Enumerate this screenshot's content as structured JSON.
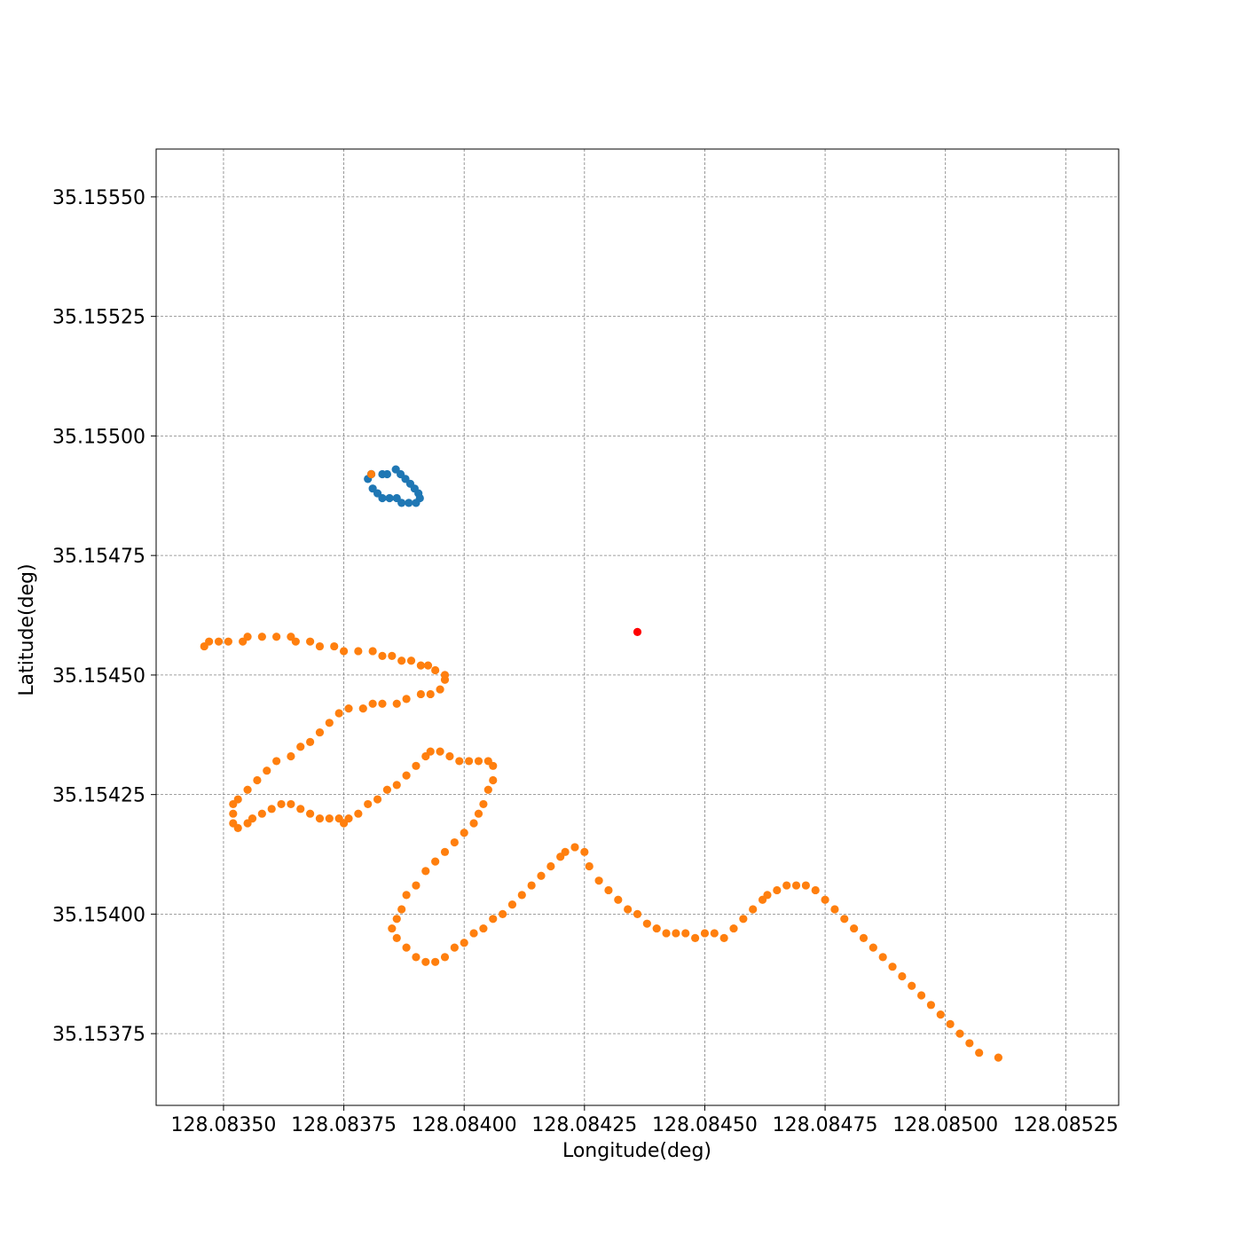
{
  "chart_data": {
    "type": "scatter",
    "title": "",
    "xlabel": "Longitude(deg)",
    "ylabel": "Latitude(deg)",
    "xlim": [
      128.08336,
      128.08536
    ],
    "ylim": [
      35.1536,
      35.1556
    ],
    "xticks": [
      128.0835,
      128.08375,
      128.084,
      128.08425,
      128.0845,
      128.08475,
      128.085,
      128.08525
    ],
    "xtick_labels": [
      "128.08350",
      "128.08375",
      "128.08400",
      "128.08425",
      "128.08450",
      "128.08475",
      "128.08500",
      "128.08525"
    ],
    "yticks": [
      35.15375,
      35.154,
      35.15425,
      35.1545,
      35.15475,
      35.155,
      35.15525,
      35.1555
    ],
    "ytick_labels": [
      "35.15375",
      "35.15400",
      "35.15425",
      "35.15450",
      "35.15475",
      "35.15500",
      "35.15525",
      "35.15550"
    ],
    "grid": true,
    "series": [
      {
        "color": "#1f77b4",
        "points": [
          [
            128.083807,
            35.15492
          ],
          [
            128.08383,
            35.15492
          ],
          [
            128.08384,
            35.15492
          ],
          [
            128.083858,
            35.15493
          ],
          [
            128.083868,
            35.15492
          ],
          [
            128.083878,
            35.15491
          ],
          [
            128.083888,
            35.1549
          ],
          [
            128.083897,
            35.15489
          ],
          [
            128.083905,
            35.15488
          ],
          [
            128.083908,
            35.15487
          ],
          [
            128.0839,
            35.15486
          ],
          [
            128.083885,
            35.15486
          ],
          [
            128.08387,
            35.15486
          ],
          [
            128.08386,
            35.15487
          ],
          [
            128.083845,
            35.15487
          ],
          [
            128.08383,
            35.15487
          ],
          [
            128.08382,
            35.15488
          ],
          [
            128.08381,
            35.15489
          ],
          [
            128.0838,
            35.15491
          ],
          [
            128.083807,
            35.15492
          ]
        ]
      },
      {
        "color": "#ff7f0e",
        "points": [
          [
            128.083807,
            35.15492
          ],
          [
            128.08346,
            35.15456
          ],
          [
            128.08347,
            35.15457
          ],
          [
            128.08349,
            35.15457
          ],
          [
            128.08351,
            35.15457
          ],
          [
            128.08354,
            35.15457
          ],
          [
            128.08355,
            35.15458
          ],
          [
            128.08358,
            35.15458
          ],
          [
            128.08361,
            35.15458
          ],
          [
            128.08364,
            35.15458
          ],
          [
            128.08365,
            35.15457
          ],
          [
            128.08368,
            35.15457
          ],
          [
            128.0837,
            35.15456
          ],
          [
            128.08373,
            35.15456
          ],
          [
            128.08375,
            35.15455
          ],
          [
            128.08378,
            35.15455
          ],
          [
            128.08381,
            35.15455
          ],
          [
            128.08383,
            35.15454
          ],
          [
            128.08385,
            35.15454
          ],
          [
            128.08387,
            35.15453
          ],
          [
            128.08389,
            35.15453
          ],
          [
            128.08391,
            35.15452
          ],
          [
            128.083925,
            35.15452
          ],
          [
            128.08394,
            35.15451
          ],
          [
            128.08396,
            35.1545
          ],
          [
            128.08396,
            35.15449
          ],
          [
            128.08395,
            35.15447
          ],
          [
            128.08393,
            35.15446
          ],
          [
            128.08391,
            35.15446
          ],
          [
            128.08388,
            35.15445
          ],
          [
            128.08386,
            35.15444
          ],
          [
            128.08383,
            35.15444
          ],
          [
            128.08381,
            35.15444
          ],
          [
            128.08379,
            35.15443
          ],
          [
            128.08376,
            35.15443
          ],
          [
            128.08374,
            35.15442
          ],
          [
            128.08372,
            35.1544
          ],
          [
            128.0837,
            35.15438
          ],
          [
            128.08368,
            35.15436
          ],
          [
            128.08366,
            35.15435
          ],
          [
            128.08364,
            35.15433
          ],
          [
            128.08361,
            35.15432
          ],
          [
            128.08359,
            35.1543
          ],
          [
            128.08357,
            35.15428
          ],
          [
            128.08355,
            35.15426
          ],
          [
            128.08353,
            35.15424
          ],
          [
            128.08352,
            35.15423
          ],
          [
            128.08352,
            35.15421
          ],
          [
            128.08352,
            35.15419
          ],
          [
            128.08353,
            35.15418
          ],
          [
            128.08355,
            35.15419
          ],
          [
            128.08356,
            35.1542
          ],
          [
            128.08358,
            35.15421
          ],
          [
            128.0836,
            35.15422
          ],
          [
            128.08362,
            35.15423
          ],
          [
            128.08364,
            35.15423
          ],
          [
            128.08366,
            35.15422
          ],
          [
            128.08368,
            35.15421
          ],
          [
            128.0837,
            35.1542
          ],
          [
            128.08372,
            35.1542
          ],
          [
            128.08374,
            35.1542
          ],
          [
            128.08375,
            35.15419
          ],
          [
            128.08376,
            35.1542
          ],
          [
            128.08378,
            35.15421
          ],
          [
            128.0838,
            35.15423
          ],
          [
            128.08382,
            35.15424
          ],
          [
            128.08384,
            35.15426
          ],
          [
            128.08386,
            35.15427
          ],
          [
            128.08388,
            35.15429
          ],
          [
            128.0839,
            35.15431
          ],
          [
            128.08392,
            35.15433
          ],
          [
            128.08393,
            35.15434
          ],
          [
            128.08395,
            35.15434
          ],
          [
            128.08397,
            35.15433
          ],
          [
            128.08399,
            35.15432
          ],
          [
            128.08401,
            35.15432
          ],
          [
            128.08403,
            35.15432
          ],
          [
            128.08405,
            35.15432
          ],
          [
            128.08406,
            35.15431
          ],
          [
            128.08406,
            35.15428
          ],
          [
            128.08405,
            35.15426
          ],
          [
            128.08404,
            35.15423
          ],
          [
            128.08403,
            35.15421
          ],
          [
            128.08402,
            35.15419
          ],
          [
            128.084,
            35.15417
          ],
          [
            128.08398,
            35.15415
          ],
          [
            128.08396,
            35.15413
          ],
          [
            128.08394,
            35.15411
          ],
          [
            128.08392,
            35.15409
          ],
          [
            128.0839,
            35.15406
          ],
          [
            128.08388,
            35.15404
          ],
          [
            128.08387,
            35.15401
          ],
          [
            128.08386,
            35.15399
          ],
          [
            128.08385,
            35.15397
          ],
          [
            128.08386,
            35.15395
          ],
          [
            128.08388,
            35.15393
          ],
          [
            128.0839,
            35.15391
          ],
          [
            128.08392,
            35.1539
          ],
          [
            128.08394,
            35.1539
          ],
          [
            128.08396,
            35.15391
          ],
          [
            128.08398,
            35.15393
          ],
          [
            128.084,
            35.15394
          ],
          [
            128.08402,
            35.15396
          ],
          [
            128.08404,
            35.15397
          ],
          [
            128.08406,
            35.15399
          ],
          [
            128.08408,
            35.154
          ],
          [
            128.0841,
            35.15402
          ],
          [
            128.08412,
            35.15404
          ],
          [
            128.08414,
            35.15406
          ],
          [
            128.08416,
            35.15408
          ],
          [
            128.08418,
            35.1541
          ],
          [
            128.0842,
            35.15412
          ],
          [
            128.08421,
            35.15413
          ],
          [
            128.08423,
            35.15414
          ],
          [
            128.08425,
            35.15413
          ],
          [
            128.08426,
            35.1541
          ],
          [
            128.08428,
            35.15407
          ],
          [
            128.0843,
            35.15405
          ],
          [
            128.08432,
            35.15403
          ],
          [
            128.08434,
            35.15401
          ],
          [
            128.08436,
            35.154
          ],
          [
            128.08438,
            35.15398
          ],
          [
            128.0844,
            35.15397
          ],
          [
            128.08442,
            35.15396
          ],
          [
            128.08444,
            35.15396
          ],
          [
            128.08446,
            35.15396
          ],
          [
            128.08448,
            35.15395
          ],
          [
            128.0845,
            35.15396
          ],
          [
            128.08452,
            35.15396
          ],
          [
            128.08454,
            35.15395
          ],
          [
            128.08456,
            35.15397
          ],
          [
            128.08458,
            35.15399
          ],
          [
            128.0846,
            35.15401
          ],
          [
            128.08462,
            35.15403
          ],
          [
            128.08463,
            35.15404
          ],
          [
            128.08465,
            35.15405
          ],
          [
            128.08467,
            35.15406
          ],
          [
            128.08469,
            35.15406
          ],
          [
            128.08471,
            35.15406
          ],
          [
            128.08473,
            35.15405
          ],
          [
            128.08475,
            35.15403
          ],
          [
            128.08477,
            35.15401
          ],
          [
            128.08479,
            35.15399
          ],
          [
            128.08481,
            35.15397
          ],
          [
            128.08483,
            35.15395
          ],
          [
            128.08485,
            35.15393
          ],
          [
            128.08487,
            35.15391
          ],
          [
            128.08489,
            35.15389
          ],
          [
            128.08491,
            35.15387
          ],
          [
            128.08493,
            35.15385
          ],
          [
            128.08495,
            35.15383
          ],
          [
            128.08497,
            35.15381
          ],
          [
            128.08499,
            35.15379
          ],
          [
            128.08501,
            35.15377
          ],
          [
            128.08503,
            35.15375
          ],
          [
            128.08505,
            35.15373
          ],
          [
            128.08507,
            35.15371
          ],
          [
            128.08511,
            35.1537
          ]
        ]
      },
      {
        "color": "#ff0000",
        "points": [
          [
            128.08436,
            35.15459
          ]
        ]
      }
    ]
  }
}
